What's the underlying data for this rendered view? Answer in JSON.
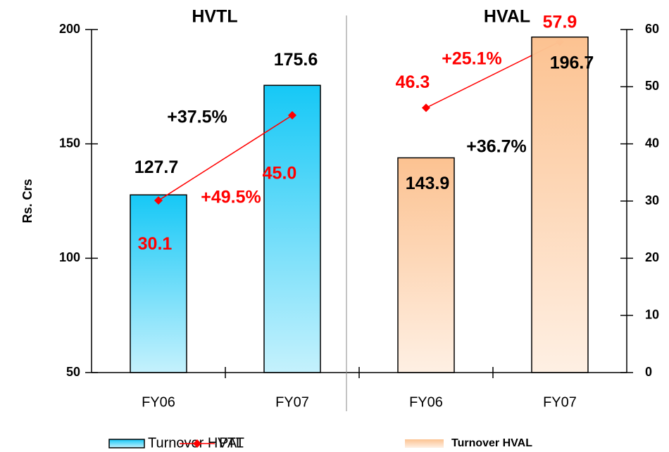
{
  "chart_data": {
    "type": "bar",
    "groups": [
      "HVTL",
      "HVAL"
    ],
    "ylabel": "Rs. Crs",
    "categories": [
      "FY06",
      "FY07",
      "FY06",
      "FY07"
    ],
    "series": [
      {
        "name": "Turnover HVTL",
        "color": "#16c8f6",
        "values": [
          127.7,
          175.6,
          null,
          null
        ]
      },
      {
        "name": "PAT",
        "type": "line",
        "axis": "y2",
        "color": "#ff0000",
        "values": [
          30.1,
          45.0,
          46.3,
          57.9
        ],
        "value_labels": [
          "30.1",
          "45.0",
          "46.3",
          "57.9"
        ]
      },
      {
        "name": "Turnover HVAL",
        "color": "#fcc291",
        "values": [
          null,
          null,
          143.9,
          196.7
        ]
      }
    ],
    "annotations": [
      {
        "text": "+37.5%",
        "color": "#000000"
      },
      {
        "text": "+49.5%",
        "color": "#ff0000"
      },
      {
        "text": "+36.7%",
        "color": "#000000"
      },
      {
        "text": "+25.1%",
        "color": "#ff0000"
      }
    ],
    "ylim": [
      50,
      200
    ],
    "yticks": [
      50,
      100,
      150,
      200
    ],
    "y2lim": [
      0,
      60
    ],
    "y2ticks": [
      0,
      10,
      20,
      30,
      40,
      50,
      60
    ]
  }
}
